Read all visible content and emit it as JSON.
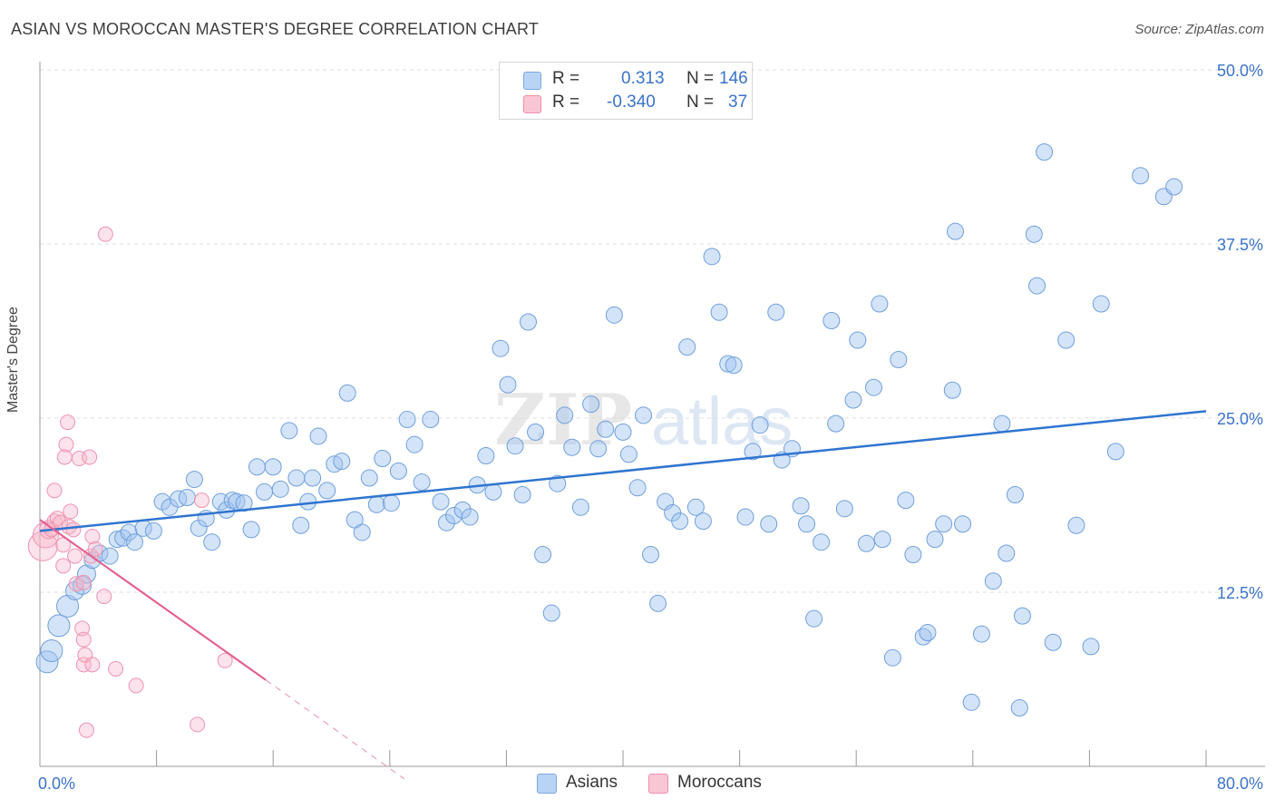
{
  "title": "ASIAN VS MOROCCAN MASTER'S DEGREE CORRELATION CHART",
  "source": "Source: ZipAtlas.com",
  "watermark": {
    "zip": "ZIP",
    "atlas": "atlas"
  },
  "legend": {
    "rows": [
      {
        "r_label": "R =",
        "r_value": "0.313",
        "n_label": "N =",
        "n_value": "146",
        "color": "#b9d3f5",
        "border": "#7ba6e0"
      },
      {
        "r_label": "R =",
        "r_value": "-0.340",
        "n_label": "N =",
        "n_value": "37",
        "color": "#f9c6d5",
        "border": "#ec8fab"
      }
    ]
  },
  "bottom_legend": [
    {
      "label": "Asians",
      "color": "#b9d3f5",
      "border": "#7ba6e0"
    },
    {
      "label": "Moroccans",
      "color": "#f9c6d5",
      "border": "#ec8fab"
    }
  ],
  "chart_data": {
    "type": "scatter",
    "title": "ASIAN VS MOROCCAN MASTER'S DEGREE CORRELATION CHART",
    "xlabel": "",
    "ylabel": "Master's Degree",
    "xlim": [
      0,
      80
    ],
    "ylim": [
      0,
      50
    ],
    "x_tick_labels": [
      "0.0%",
      "80.0%"
    ],
    "y_ticks": [
      12.5,
      25.0,
      37.5,
      50.0
    ],
    "y_tick_labels": [
      "12.5%",
      "25.0%",
      "37.5%",
      "50.0%"
    ],
    "grid": true,
    "legend_position": "top-center",
    "colors": {
      "asians": "#4a86d8",
      "moroccans": "#e8769c",
      "tick_text": "#3a73c9"
    },
    "series": [
      {
        "name": "Asians",
        "r": 0.313,
        "n": 146,
        "trend": {
          "x": [
            0,
            80
          ],
          "y": [
            16.9,
            25.5
          ]
        },
        "points": [
          [
            0.5,
            7.5,
            12
          ],
          [
            0.8,
            8.3,
            12
          ],
          [
            1.3,
            10.1,
            12
          ],
          [
            1.9,
            11.5,
            12
          ],
          [
            2.4,
            12.6,
            10
          ],
          [
            2.9,
            13.0,
            10
          ],
          [
            3.2,
            13.8,
            10
          ],
          [
            3.6,
            14.8,
            9
          ],
          [
            4.1,
            15.3,
            9
          ],
          [
            4.8,
            15.1,
            9
          ],
          [
            5.3,
            16.3,
            9
          ],
          [
            5.7,
            16.4,
            9
          ],
          [
            6.1,
            16.8,
            9
          ],
          [
            6.5,
            16.1,
            9
          ],
          [
            7.1,
            17.1,
            9
          ],
          [
            7.8,
            16.9,
            9
          ],
          [
            8.4,
            19.0,
            9
          ],
          [
            8.9,
            18.6,
            9
          ],
          [
            9.5,
            19.2,
            9
          ],
          [
            10.1,
            19.3,
            9
          ],
          [
            10.6,
            20.6,
            9
          ],
          [
            10.9,
            17.1,
            9
          ],
          [
            11.4,
            17.8,
            9
          ],
          [
            11.8,
            16.1,
            9
          ],
          [
            12.4,
            19.0,
            9
          ],
          [
            12.8,
            18.4,
            9
          ],
          [
            13.2,
            19.1,
            9
          ],
          [
            13.5,
            19.0,
            9
          ],
          [
            14.0,
            18.9,
            9
          ],
          [
            14.5,
            17.0,
            9
          ],
          [
            14.9,
            21.5,
            9
          ],
          [
            15.4,
            19.7,
            9
          ],
          [
            16.0,
            21.5,
            9
          ],
          [
            16.5,
            19.9,
            9
          ],
          [
            17.1,
            24.1,
            9
          ],
          [
            17.6,
            20.7,
            9
          ],
          [
            17.9,
            17.3,
            9
          ],
          [
            18.4,
            19.0,
            9
          ],
          [
            18.7,
            20.7,
            9
          ],
          [
            19.1,
            23.7,
            9
          ],
          [
            19.7,
            19.8,
            9
          ],
          [
            20.2,
            21.7,
            9
          ],
          [
            20.7,
            21.9,
            9
          ],
          [
            21.1,
            26.8,
            9
          ],
          [
            21.6,
            17.7,
            9
          ],
          [
            22.1,
            16.8,
            9
          ],
          [
            22.6,
            20.7,
            9
          ],
          [
            23.1,
            18.8,
            9
          ],
          [
            23.5,
            22.1,
            9
          ],
          [
            24.1,
            18.9,
            9
          ],
          [
            24.6,
            21.2,
            9
          ],
          [
            25.2,
            24.9,
            9
          ],
          [
            25.7,
            23.1,
            9
          ],
          [
            26.2,
            20.4,
            9
          ],
          [
            26.8,
            24.9,
            9
          ],
          [
            27.5,
            19.0,
            9
          ],
          [
            27.9,
            17.5,
            9
          ],
          [
            28.4,
            18.0,
            9
          ],
          [
            29.0,
            18.4,
            9
          ],
          [
            29.5,
            17.9,
            9
          ],
          [
            30.0,
            20.2,
            9
          ],
          [
            30.6,
            22.3,
            9
          ],
          [
            31.1,
            19.7,
            9
          ],
          [
            31.6,
            30.0,
            9
          ],
          [
            32.1,
            27.4,
            9
          ],
          [
            32.6,
            23.0,
            9
          ],
          [
            33.1,
            19.5,
            9
          ],
          [
            33.5,
            31.9,
            9
          ],
          [
            34.0,
            24.0,
            9
          ],
          [
            34.5,
            15.2,
            9
          ],
          [
            35.1,
            11.0,
            9
          ],
          [
            35.5,
            20.3,
            9
          ],
          [
            36.0,
            25.2,
            9
          ],
          [
            36.5,
            22.9,
            9
          ],
          [
            37.1,
            18.6,
            9
          ],
          [
            37.8,
            26.0,
            9
          ],
          [
            38.3,
            22.8,
            9
          ],
          [
            38.8,
            24.2,
            9
          ],
          [
            39.4,
            32.4,
            9
          ],
          [
            40.0,
            24.0,
            9
          ],
          [
            40.4,
            22.4,
            9
          ],
          [
            41.0,
            20.0,
            9
          ],
          [
            41.4,
            25.2,
            9
          ],
          [
            41.9,
            15.2,
            9
          ],
          [
            42.4,
            11.7,
            9
          ],
          [
            42.9,
            19.0,
            9
          ],
          [
            43.4,
            18.2,
            9
          ],
          [
            43.9,
            17.6,
            9
          ],
          [
            44.4,
            30.1,
            9
          ],
          [
            45.0,
            18.6,
            9
          ],
          [
            45.5,
            17.6,
            9
          ],
          [
            46.1,
            36.6,
            9
          ],
          [
            46.6,
            32.6,
            9
          ],
          [
            47.2,
            28.9,
            9
          ],
          [
            47.6,
            28.8,
            9
          ],
          [
            48.4,
            17.9,
            9
          ],
          [
            48.9,
            22.6,
            9
          ],
          [
            49.4,
            24.5,
            9
          ],
          [
            50.0,
            17.4,
            9
          ],
          [
            50.5,
            32.6,
            9
          ],
          [
            50.9,
            22.0,
            9
          ],
          [
            51.6,
            22.8,
            9
          ],
          [
            52.2,
            18.7,
            9
          ],
          [
            52.6,
            17.4,
            9
          ],
          [
            53.1,
            10.6,
            9
          ],
          [
            53.6,
            16.1,
            9
          ],
          [
            54.3,
            32.0,
            9
          ],
          [
            54.6,
            24.6,
            9
          ],
          [
            55.2,
            18.5,
            9
          ],
          [
            55.8,
            26.3,
            9
          ],
          [
            56.1,
            30.6,
            9
          ],
          [
            56.7,
            16.0,
            9
          ],
          [
            57.2,
            27.2,
            9
          ],
          [
            57.6,
            33.2,
            9
          ],
          [
            57.8,
            16.3,
            9
          ],
          [
            58.5,
            7.8,
            9
          ],
          [
            58.9,
            29.2,
            9
          ],
          [
            59.4,
            19.1,
            9
          ],
          [
            59.9,
            15.2,
            9
          ],
          [
            60.6,
            9.3,
            9
          ],
          [
            60.9,
            9.6,
            9
          ],
          [
            61.4,
            16.3,
            9
          ],
          [
            62.0,
            17.4,
            9
          ],
          [
            62.6,
            27.0,
            9
          ],
          [
            62.8,
            38.4,
            9
          ],
          [
            63.3,
            17.4,
            9
          ],
          [
            63.9,
            4.6,
            9
          ],
          [
            64.6,
            9.5,
            9
          ],
          [
            65.4,
            13.3,
            9
          ],
          [
            66.0,
            24.6,
            9
          ],
          [
            66.3,
            15.3,
            9
          ],
          [
            66.9,
            19.5,
            9
          ],
          [
            67.2,
            4.2,
            9
          ],
          [
            67.4,
            10.8,
            9
          ],
          [
            68.2,
            38.2,
            9
          ],
          [
            68.4,
            34.5,
            9
          ],
          [
            68.9,
            44.1,
            9
          ],
          [
            69.5,
            8.9,
            9
          ],
          [
            70.4,
            30.6,
            9
          ],
          [
            71.1,
            17.3,
            9
          ],
          [
            72.1,
            8.6,
            9
          ],
          [
            72.8,
            33.2,
            9
          ],
          [
            73.8,
            22.6,
            9
          ],
          [
            75.5,
            42.4,
            9
          ],
          [
            77.1,
            40.9,
            9
          ],
          [
            77.8,
            41.6,
            9
          ]
        ]
      },
      {
        "name": "Moroccans",
        "r": -0.34,
        "n": 37,
        "trend_solid": {
          "x": [
            0,
            15.5
          ],
          "y": [
            17.7,
            6.2
          ]
        },
        "trend_dashed": {
          "x": [
            15.5,
            25
          ],
          "y": [
            6.2,
            -0.9
          ]
        },
        "points": [
          [
            0.2,
            15.8,
            16
          ],
          [
            0.4,
            16.6,
            14
          ],
          [
            0.6,
            17.0,
            10
          ],
          [
            0.8,
            17.0,
            8
          ],
          [
            1.0,
            19.8,
            8
          ],
          [
            1.0,
            17.6,
            8
          ],
          [
            1.2,
            17.8,
            8
          ],
          [
            1.4,
            17.5,
            8
          ],
          [
            1.6,
            15.9,
            8
          ],
          [
            1.6,
            14.4,
            8
          ],
          [
            1.8,
            23.1,
            8
          ],
          [
            1.7,
            22.2,
            8
          ],
          [
            1.9,
            24.7,
            8
          ],
          [
            2.0,
            17.2,
            8
          ],
          [
            2.1,
            18.3,
            8
          ],
          [
            2.3,
            17.0,
            8
          ],
          [
            2.4,
            15.1,
            8
          ],
          [
            2.5,
            13.1,
            8
          ],
          [
            2.7,
            22.1,
            8
          ],
          [
            2.9,
            9.9,
            8
          ],
          [
            3.0,
            9.1,
            8
          ],
          [
            3.0,
            7.3,
            8
          ],
          [
            3.0,
            13.2,
            8
          ],
          [
            3.1,
            8.0,
            8
          ],
          [
            3.2,
            2.6,
            8
          ],
          [
            3.4,
            22.2,
            8
          ],
          [
            3.5,
            15.1,
            8
          ],
          [
            3.6,
            7.3,
            8
          ],
          [
            3.6,
            16.5,
            8
          ],
          [
            3.8,
            15.6,
            8
          ],
          [
            4.4,
            12.2,
            8
          ],
          [
            4.5,
            38.2,
            8
          ],
          [
            5.2,
            7.0,
            8
          ],
          [
            6.6,
            5.8,
            8
          ],
          [
            10.8,
            3.0,
            8
          ],
          [
            11.1,
            19.1,
            8
          ],
          [
            12.7,
            7.6,
            8
          ]
        ]
      }
    ]
  }
}
